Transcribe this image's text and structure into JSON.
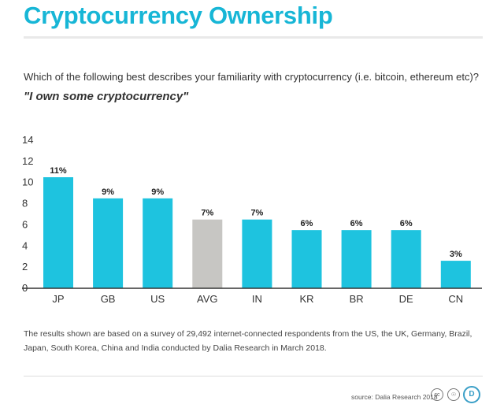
{
  "header": {
    "title": "Cryptocurrency Ownership",
    "question": "Which of the following best describes your familiarity with cryptocurrency (i.e. bitcoin, ethereum etc)?",
    "answer": "\"I own some cryptocurrency\""
  },
  "chart_data": {
    "type": "bar",
    "categories": [
      "JP",
      "GB",
      "US",
      "AVG",
      "IN",
      "KR",
      "BR",
      "DE",
      "CN"
    ],
    "values": [
      10.5,
      8.5,
      8.5,
      6.5,
      6.5,
      5.5,
      5.5,
      5.5,
      2.6
    ],
    "data_labels": [
      "11%",
      "9%",
      "9%",
      "7%",
      "7%",
      "6%",
      "6%",
      "6%",
      "3%"
    ],
    "highlight_category": "AVG",
    "yticks": [
      0,
      2,
      4,
      6,
      8,
      10,
      12,
      14
    ],
    "ylim": [
      0,
      14
    ],
    "xlabel": "",
    "ylabel": "",
    "grid": false,
    "colors": {
      "bar": "#1ec3df",
      "highlight": "#c7c6c3",
      "axis": "#333333"
    }
  },
  "footer": {
    "note": "The results shown are based on a survey of 29,492 internet-connected respondents from the US, the UK, Germany, Brazil, Japan, South Korea, China and India conducted by Dalia Research in March 2018.",
    "source": "source: Dalia Research 2018",
    "icons": [
      "cc-icon",
      "person-icon",
      "dalia-logo-icon"
    ],
    "badge_cc": "cc",
    "badge_person": "☉",
    "badge_dalia": "D"
  }
}
